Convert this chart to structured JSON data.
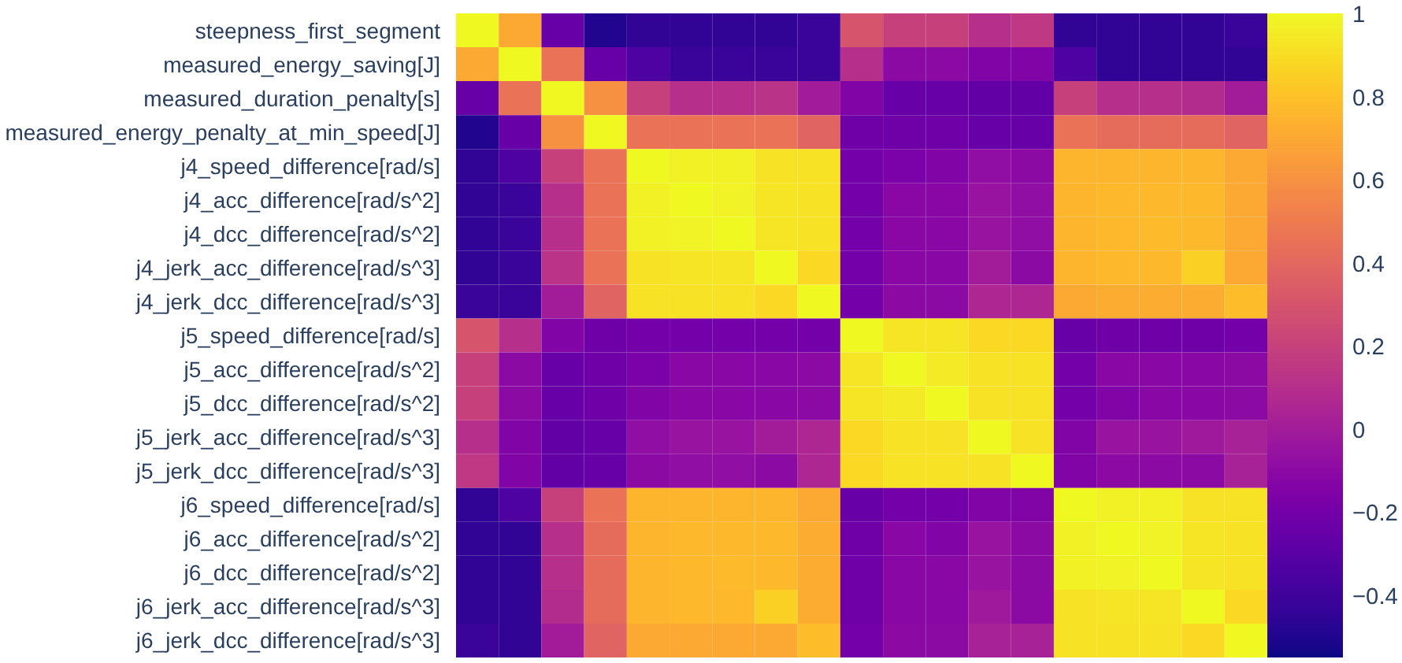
{
  "chart_data": {
    "type": "heatmap",
    "categories": [
      null,
      null,
      null,
      null,
      null,
      null,
      null,
      null,
      null,
      null,
      null,
      null,
      null,
      null,
      null,
      null,
      null,
      null,
      null
    ],
    "y_categories": [
      "steepness_first_segment",
      "measured_energy_saving[J]",
      "measured_duration_penalty[s]",
      "measured_energy_penalty_at_min_speed[J]",
      "j4_speed_difference[rad/s]",
      "j4_acc_difference[rad/s^2]",
      "j4_dcc_difference[rad/s^2]",
      "j4_jerk_acc_difference[rad/s^3]",
      "j4_jerk_dcc_difference[rad/s^3]",
      "j5_speed_difference[rad/s]",
      "j5_acc_difference[rad/s^2]",
      "j5_dcc_difference[rad/s^2]",
      "j5_jerk_acc_difference[rad/s^3]",
      "j5_jerk_dcc_difference[rad/s^3]",
      "j6_speed_difference[rad/s]",
      "j6_acc_difference[rad/s^2]",
      "j6_dcc_difference[rad/s^2]",
      "j6_jerk_acc_difference[rad/s^3]",
      "j6_jerk_dcc_difference[rad/s^3]"
    ],
    "cells": [
      [
        1,
        0.7,
        -0.25,
        -0.5,
        -0.45,
        -0.45,
        -0.45,
        -0.45,
        -0.42,
        0.3,
        0.2,
        0.2,
        0.1,
        0.15,
        -0.45,
        -0.45,
        -0.45,
        -0.45,
        -0.42
      ],
      [
        0.7,
        1,
        0.45,
        -0.25,
        -0.35,
        -0.42,
        -0.42,
        -0.42,
        -0.42,
        0.1,
        -0.1,
        -0.1,
        -0.15,
        -0.15,
        -0.35,
        -0.45,
        -0.45,
        -0.45,
        -0.45
      ],
      [
        -0.25,
        0.45,
        1,
        0.6,
        0.2,
        0.1,
        0.1,
        0.12,
        0.0,
        -0.15,
        -0.25,
        -0.25,
        -0.27,
        -0.27,
        0.2,
        0.1,
        0.1,
        0.08,
        0.0
      ],
      [
        -0.5,
        -0.25,
        0.6,
        1,
        0.45,
        0.45,
        0.45,
        0.45,
        0.38,
        -0.22,
        -0.22,
        -0.22,
        -0.25,
        -0.25,
        0.45,
        0.42,
        0.42,
        0.42,
        0.38
      ],
      [
        -0.45,
        -0.35,
        0.2,
        0.45,
        1,
        0.97,
        0.97,
        0.92,
        0.92,
        -0.2,
        -0.17,
        -0.15,
        -0.08,
        -0.1,
        0.75,
        0.75,
        0.75,
        0.75,
        0.7
      ],
      [
        -0.45,
        -0.42,
        0.1,
        0.45,
        0.97,
        1,
        0.98,
        0.93,
        0.92,
        -0.2,
        -0.12,
        -0.12,
        -0.05,
        -0.08,
        0.75,
        0.76,
        0.76,
        0.76,
        0.7
      ],
      [
        -0.45,
        -0.42,
        0.1,
        0.45,
        0.97,
        0.98,
        1,
        0.93,
        0.92,
        -0.2,
        -0.12,
        -0.12,
        -0.05,
        -0.08,
        0.75,
        0.76,
        0.77,
        0.76,
        0.7
      ],
      [
        -0.45,
        -0.42,
        0.12,
        0.45,
        0.92,
        0.93,
        0.93,
        1,
        0.88,
        -0.2,
        -0.12,
        -0.12,
        0.0,
        -0.1,
        0.75,
        0.76,
        0.76,
        0.85,
        0.7
      ],
      [
        -0.42,
        -0.42,
        0.0,
        0.38,
        0.92,
        0.92,
        0.92,
        0.88,
        1,
        -0.2,
        -0.1,
        -0.1,
        0.05,
        0.05,
        0.7,
        0.72,
        0.72,
        0.72,
        0.78
      ],
      [
        0.3,
        0.1,
        -0.15,
        -0.22,
        -0.2,
        -0.2,
        -0.2,
        -0.2,
        -0.2,
        1,
        0.93,
        0.93,
        0.88,
        0.88,
        -0.25,
        -0.22,
        -0.22,
        -0.22,
        -0.2
      ],
      [
        0.2,
        -0.1,
        -0.25,
        -0.22,
        -0.17,
        -0.12,
        -0.12,
        -0.12,
        -0.1,
        0.93,
        1,
        0.95,
        0.92,
        0.92,
        -0.2,
        -0.12,
        -0.12,
        -0.12,
        -0.1
      ],
      [
        0.2,
        -0.1,
        -0.25,
        -0.22,
        -0.15,
        -0.12,
        -0.12,
        -0.12,
        -0.1,
        0.93,
        0.95,
        1,
        0.92,
        0.92,
        -0.2,
        -0.15,
        -0.12,
        -0.12,
        -0.1
      ],
      [
        0.1,
        -0.15,
        -0.27,
        -0.25,
        -0.08,
        -0.05,
        -0.05,
        0.0,
        0.05,
        0.88,
        0.92,
        0.92,
        1,
        0.92,
        -0.15,
        -0.05,
        -0.05,
        -0.02,
        0.02
      ],
      [
        0.15,
        -0.15,
        -0.27,
        -0.25,
        -0.1,
        -0.08,
        -0.08,
        -0.1,
        0.05,
        0.88,
        0.92,
        0.92,
        0.92,
        1,
        -0.15,
        -0.1,
        -0.1,
        -0.1,
        0.02
      ],
      [
        -0.45,
        -0.35,
        0.2,
        0.45,
        0.75,
        0.75,
        0.75,
        0.75,
        0.7,
        -0.25,
        -0.2,
        -0.2,
        -0.15,
        -0.15,
        1,
        0.97,
        0.97,
        0.92,
        0.92
      ],
      [
        -0.45,
        -0.45,
        0.1,
        0.42,
        0.75,
        0.76,
        0.76,
        0.76,
        0.72,
        -0.22,
        -0.12,
        -0.15,
        -0.05,
        -0.1,
        0.97,
        1,
        0.98,
        0.93,
        0.92
      ],
      [
        -0.45,
        -0.45,
        0.1,
        0.42,
        0.75,
        0.76,
        0.77,
        0.76,
        0.72,
        -0.22,
        -0.12,
        -0.12,
        -0.05,
        -0.1,
        0.97,
        0.98,
        1,
        0.93,
        0.92
      ],
      [
        -0.45,
        -0.45,
        0.08,
        0.42,
        0.75,
        0.76,
        0.76,
        0.85,
        0.72,
        -0.22,
        -0.12,
        -0.12,
        -0.02,
        -0.1,
        0.92,
        0.93,
        0.93,
        1,
        0.88
      ],
      [
        -0.42,
        -0.45,
        0.0,
        0.38,
        0.7,
        0.7,
        0.7,
        0.7,
        0.78,
        -0.2,
        -0.1,
        -0.1,
        0.02,
        0.02,
        0.92,
        0.92,
        0.92,
        0.88,
        1
      ]
    ],
    "clim": [
      -0.55,
      1
    ],
    "cticks": [
      {
        "value": -0.4,
        "label": "−0.4"
      },
      {
        "value": -0.2,
        "label": "−0.2"
      },
      0,
      0.2,
      0.4,
      0.6,
      0.8,
      1
    ],
    "tick_labels": "y"
  }
}
